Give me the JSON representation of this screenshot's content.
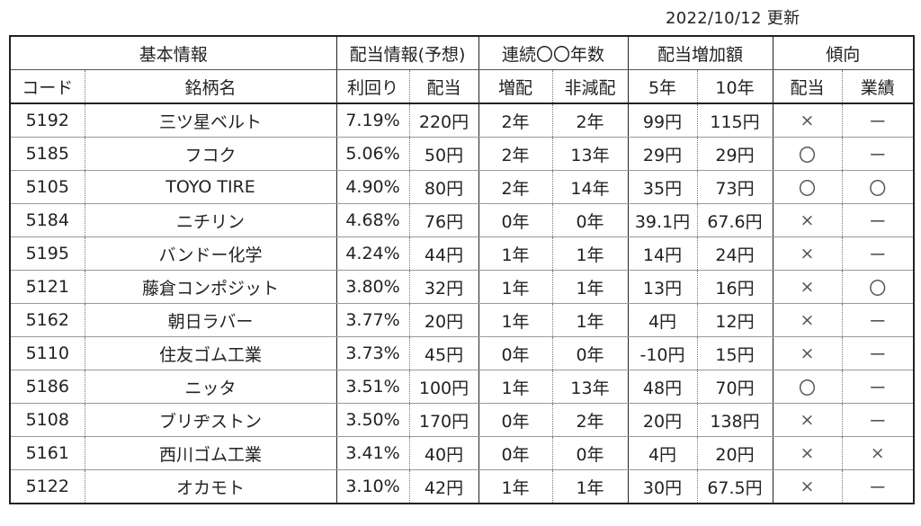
{
  "update_date": "2022/10/12 更新",
  "group_headers": [
    {
      "label": "基本情報",
      "span": 2
    },
    {
      "label": "配当情報(予想)",
      "span": 2
    },
    {
      "label": "連続〇〇年数",
      "span": 2
    },
    {
      "label": "配当増加額",
      "span": 2
    },
    {
      "label": "傾向",
      "span": 2
    }
  ],
  "column_headers": [
    "コード",
    "銘柄名",
    "利回り",
    "配当",
    "増配",
    "非減配",
    "5年",
    "10年",
    "配当",
    "業績"
  ],
  "rows": [
    [
      "5192",
      "三ツ星ベルト",
      "7.19%",
      "220円",
      "2年",
      "2年",
      "99円",
      "115円",
      "×",
      "ー"
    ],
    [
      "5185",
      "フコク",
      "5.06%",
      "50円",
      "2年",
      "13年",
      "29円",
      "29円",
      "〇",
      "ー"
    ],
    [
      "5105",
      "TOYO TIRE",
      "4.90%",
      "80円",
      "2年",
      "14年",
      "35円",
      "73円",
      "〇",
      "〇"
    ],
    [
      "5184",
      "ニチリン",
      "4.68%",
      "76円",
      "0年",
      "0年",
      "39.1円",
      "67.6円",
      "×",
      "ー"
    ],
    [
      "5195",
      "バンドー化学",
      "4.24%",
      "44円",
      "1年",
      "1年",
      "14円",
      "24円",
      "×",
      "ー"
    ],
    [
      "5121",
      "藤倉コンポジット",
      "3.80%",
      "32円",
      "1年",
      "1年",
      "13円",
      "16円",
      "×",
      "〇"
    ],
    [
      "5162",
      "朝日ラバー",
      "3.77%",
      "20円",
      "1年",
      "1年",
      "4円",
      "12円",
      "×",
      "ー"
    ],
    [
      "5110",
      "住友ゴム工業",
      "3.73%",
      "45円",
      "0年",
      "0年",
      "-10円",
      "15円",
      "×",
      "ー"
    ],
    [
      "5186",
      "ニッタ",
      "3.51%",
      "100円",
      "1年",
      "13年",
      "48円",
      "70円",
      "〇",
      "ー"
    ],
    [
      "5108",
      "ブリヂストン",
      "3.50%",
      "170円",
      "0年",
      "2年",
      "20円",
      "138円",
      "×",
      "ー"
    ],
    [
      "5161",
      "西川ゴム工業",
      "3.41%",
      "40円",
      "0年",
      "0年",
      "4円",
      "20円",
      "×",
      "×"
    ],
    [
      "5122",
      "オカモト",
      "3.10%",
      "42円",
      "1年",
      "1年",
      "30円",
      "67.5円",
      "×",
      "ー"
    ]
  ]
}
